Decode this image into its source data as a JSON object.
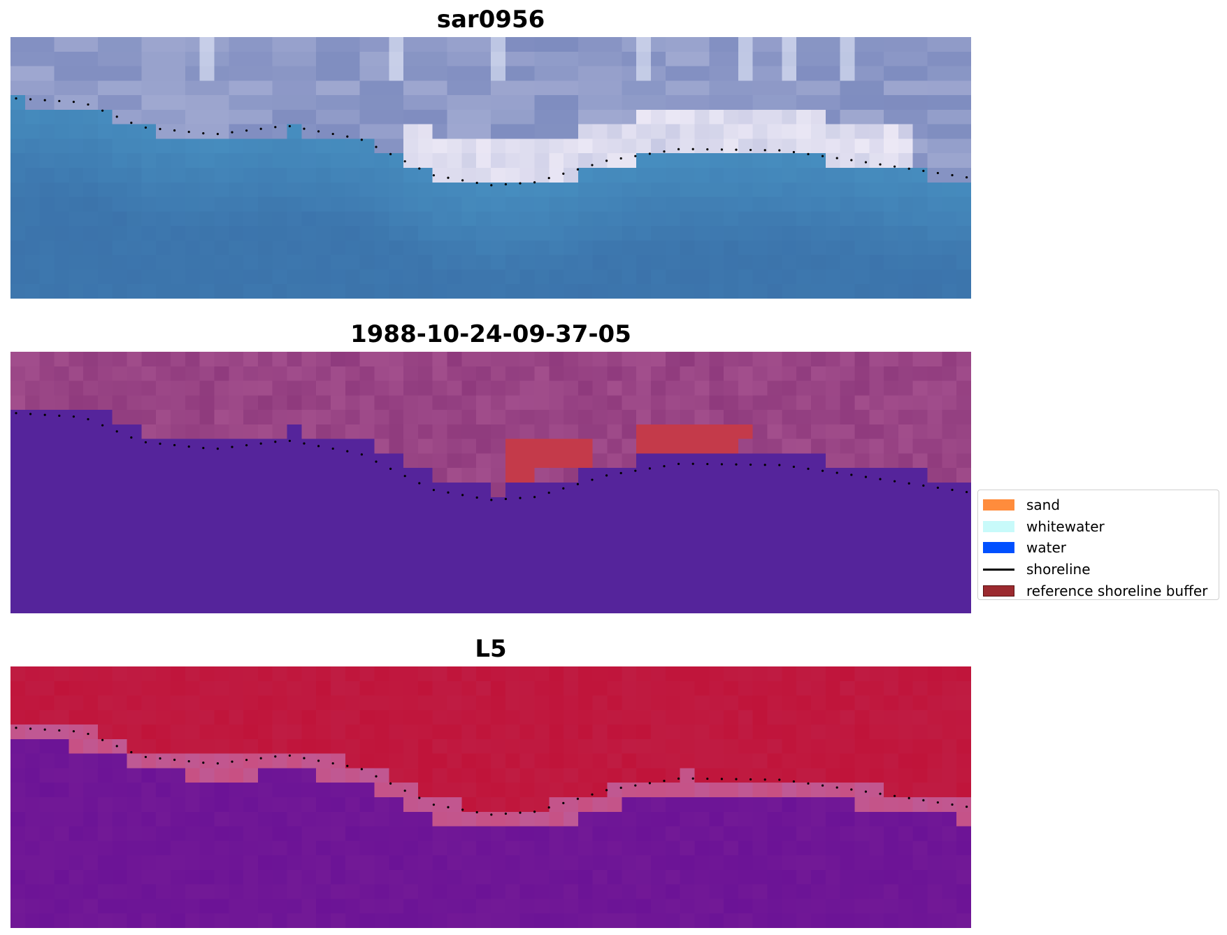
{
  "figure": {
    "panels": [
      {
        "title": "sar0956",
        "colormap": "rgb-satellite"
      },
      {
        "title": "1988-10-24-09-37-05",
        "colormap": "classified-overlay"
      },
      {
        "title": "L5",
        "colormap": "index"
      }
    ],
    "legend": {
      "items": [
        {
          "label": "sand",
          "type": "patch",
          "color": "#ff8c3c"
        },
        {
          "label": "whitewater",
          "type": "patch",
          "color": "#c8fafa"
        },
        {
          "label": "water",
          "type": "patch",
          "color": "#0050ff"
        },
        {
          "label": "shoreline",
          "type": "line",
          "color": "#000000"
        },
        {
          "label": "reference shoreline buffer",
          "type": "patch",
          "color": "#9b2a2f"
        }
      ]
    },
    "colors": {
      "shoreline_dots": "#000000",
      "classified_water": "#55249b",
      "classified_buffer": "#c43a4a",
      "classified_land": "#a24e8c",
      "index_high": "#c0143a",
      "index_low": "#6a1296",
      "rgb_water": "#3b72aa",
      "rgb_land": "#9fa8d0"
    }
  }
}
